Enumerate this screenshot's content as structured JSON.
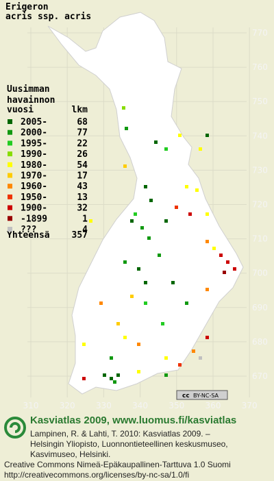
{
  "title": [
    "Erigeron",
    "acris ssp. acris"
  ],
  "legend": {
    "heading": [
      "Uusimman",
      "havainnon",
      "vuosi"
    ],
    "count_heading": "lkm",
    "rows": [
      {
        "label": "2005-",
        "count": 68,
        "color": "#006600"
      },
      {
        "label": "2000-",
        "count": 77,
        "color": "#119911"
      },
      {
        "label": "1995-",
        "count": 22,
        "color": "#22cc22"
      },
      {
        "label": "1990-",
        "count": 26,
        "color": "#88dd00"
      },
      {
        "label": "1980-",
        "count": 54,
        "color": "#ffff00"
      },
      {
        "label": "1970-",
        "count": 17,
        "color": "#ffcc00"
      },
      {
        "label": "1960-",
        "count": 43,
        "color": "#ff8800"
      },
      {
        "label": "1950-",
        "count": 13,
        "color": "#ee3300"
      },
      {
        "label": "1900-",
        "count": 32,
        "color": "#cc0000"
      },
      {
        "label": "-1899",
        "count": 1,
        "color": "#990000"
      },
      {
        "label": "???",
        "count": 4,
        "color": "#c0c0c0"
      }
    ],
    "total_label": "Yhteensä",
    "total": 357
  },
  "grid": {
    "x_labels": [
      310,
      320,
      330,
      340,
      350,
      360,
      370
    ],
    "y_labels": [
      770,
      760,
      750,
      740,
      730,
      720,
      710,
      700,
      690,
      680,
      670
    ]
  },
  "license_badge": {
    "cc": "cc",
    "text": "BY-NC-SA"
  },
  "footer": {
    "title": "Kasviatlas 2009, www.luomus.fi/kasviatlas",
    "citation": [
      "Lampinen, R. & Lahti, T. 2010: Kasviatlas 2009. –",
      "Helsingin Yliopisto, Luonnontieteellinen keskusmuseo,",
      "Kasvimuseo, Helsinki."
    ],
    "license": [
      "Creative Commons Nimeä-Epäkaupallinen-Tarttuva 1.0 Suomi",
      "http://creativecommons.org/licenses/by-nc-sa/1.0/fi"
    ]
  }
}
